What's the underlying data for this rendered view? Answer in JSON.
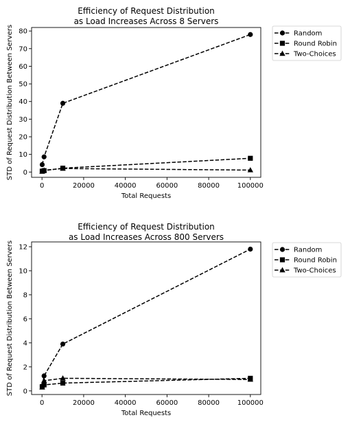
{
  "chart_data": [
    {
      "type": "line",
      "title": [
        "Efficiency of Request Distribution",
        "as Load Increases Across 8 Servers"
      ],
      "xlabel": "Total Requests",
      "ylabel": "STD of Request Distribution Between Servers",
      "xlim": [
        -5000,
        105000
      ],
      "ylim": [
        -3,
        82
      ],
      "xticks": [
        0,
        20000,
        40000,
        60000,
        80000,
        100000
      ],
      "yticks": [
        0,
        10,
        20,
        30,
        40,
        50,
        60,
        70,
        80
      ],
      "legend_position": "outside-top-right",
      "series": [
        {
          "name": "Random",
          "marker": "circle",
          "line": "dashed",
          "color": "#000000",
          "x": [
            100,
            1000,
            10000,
            100000
          ],
          "y": [
            4.2,
            8.6,
            39.0,
            78.0
          ]
        },
        {
          "name": "Round Robin",
          "marker": "square",
          "line": "dashed",
          "color": "#000000",
          "x": [
            100,
            1000,
            10000,
            100000
          ],
          "y": [
            0.5,
            0.8,
            2.2,
            7.8
          ]
        },
        {
          "name": "Two-Choices",
          "marker": "triangle",
          "line": "dashed",
          "color": "#000000",
          "x": [
            100,
            1000,
            10000,
            100000
          ],
          "y": [
            0.3,
            1.0,
            2.0,
            1.1
          ]
        }
      ]
    },
    {
      "type": "line",
      "title": [
        "Efficiency of Request Distribution",
        "as Load Increases Across 800 Servers"
      ],
      "xlabel": "Total Requests",
      "ylabel": "STD of Request Distribution Between Servers",
      "xlim": [
        -5000,
        105000
      ],
      "ylim": [
        -0.3,
        12.4
      ],
      "xticks": [
        0,
        20000,
        40000,
        60000,
        80000,
        100000
      ],
      "yticks": [
        0,
        2,
        4,
        6,
        8,
        10,
        12
      ],
      "legend_position": "outside-top-right",
      "series": [
        {
          "name": "Random",
          "marker": "circle",
          "line": "dashed",
          "color": "#000000",
          "x": [
            100,
            1000,
            10000,
            100000
          ],
          "y": [
            0.4,
            1.25,
            3.9,
            11.8
          ]
        },
        {
          "name": "Round Robin",
          "marker": "square",
          "line": "dashed",
          "color": "#000000",
          "x": [
            100,
            1000,
            10000,
            100000
          ],
          "y": [
            0.35,
            0.5,
            0.65,
            1.05
          ]
        },
        {
          "name": "Two-Choices",
          "marker": "triangle",
          "line": "dashed",
          "color": "#000000",
          "x": [
            100,
            1000,
            10000,
            100000
          ],
          "y": [
            0.3,
            0.85,
            1.05,
            0.95
          ]
        }
      ]
    }
  ]
}
